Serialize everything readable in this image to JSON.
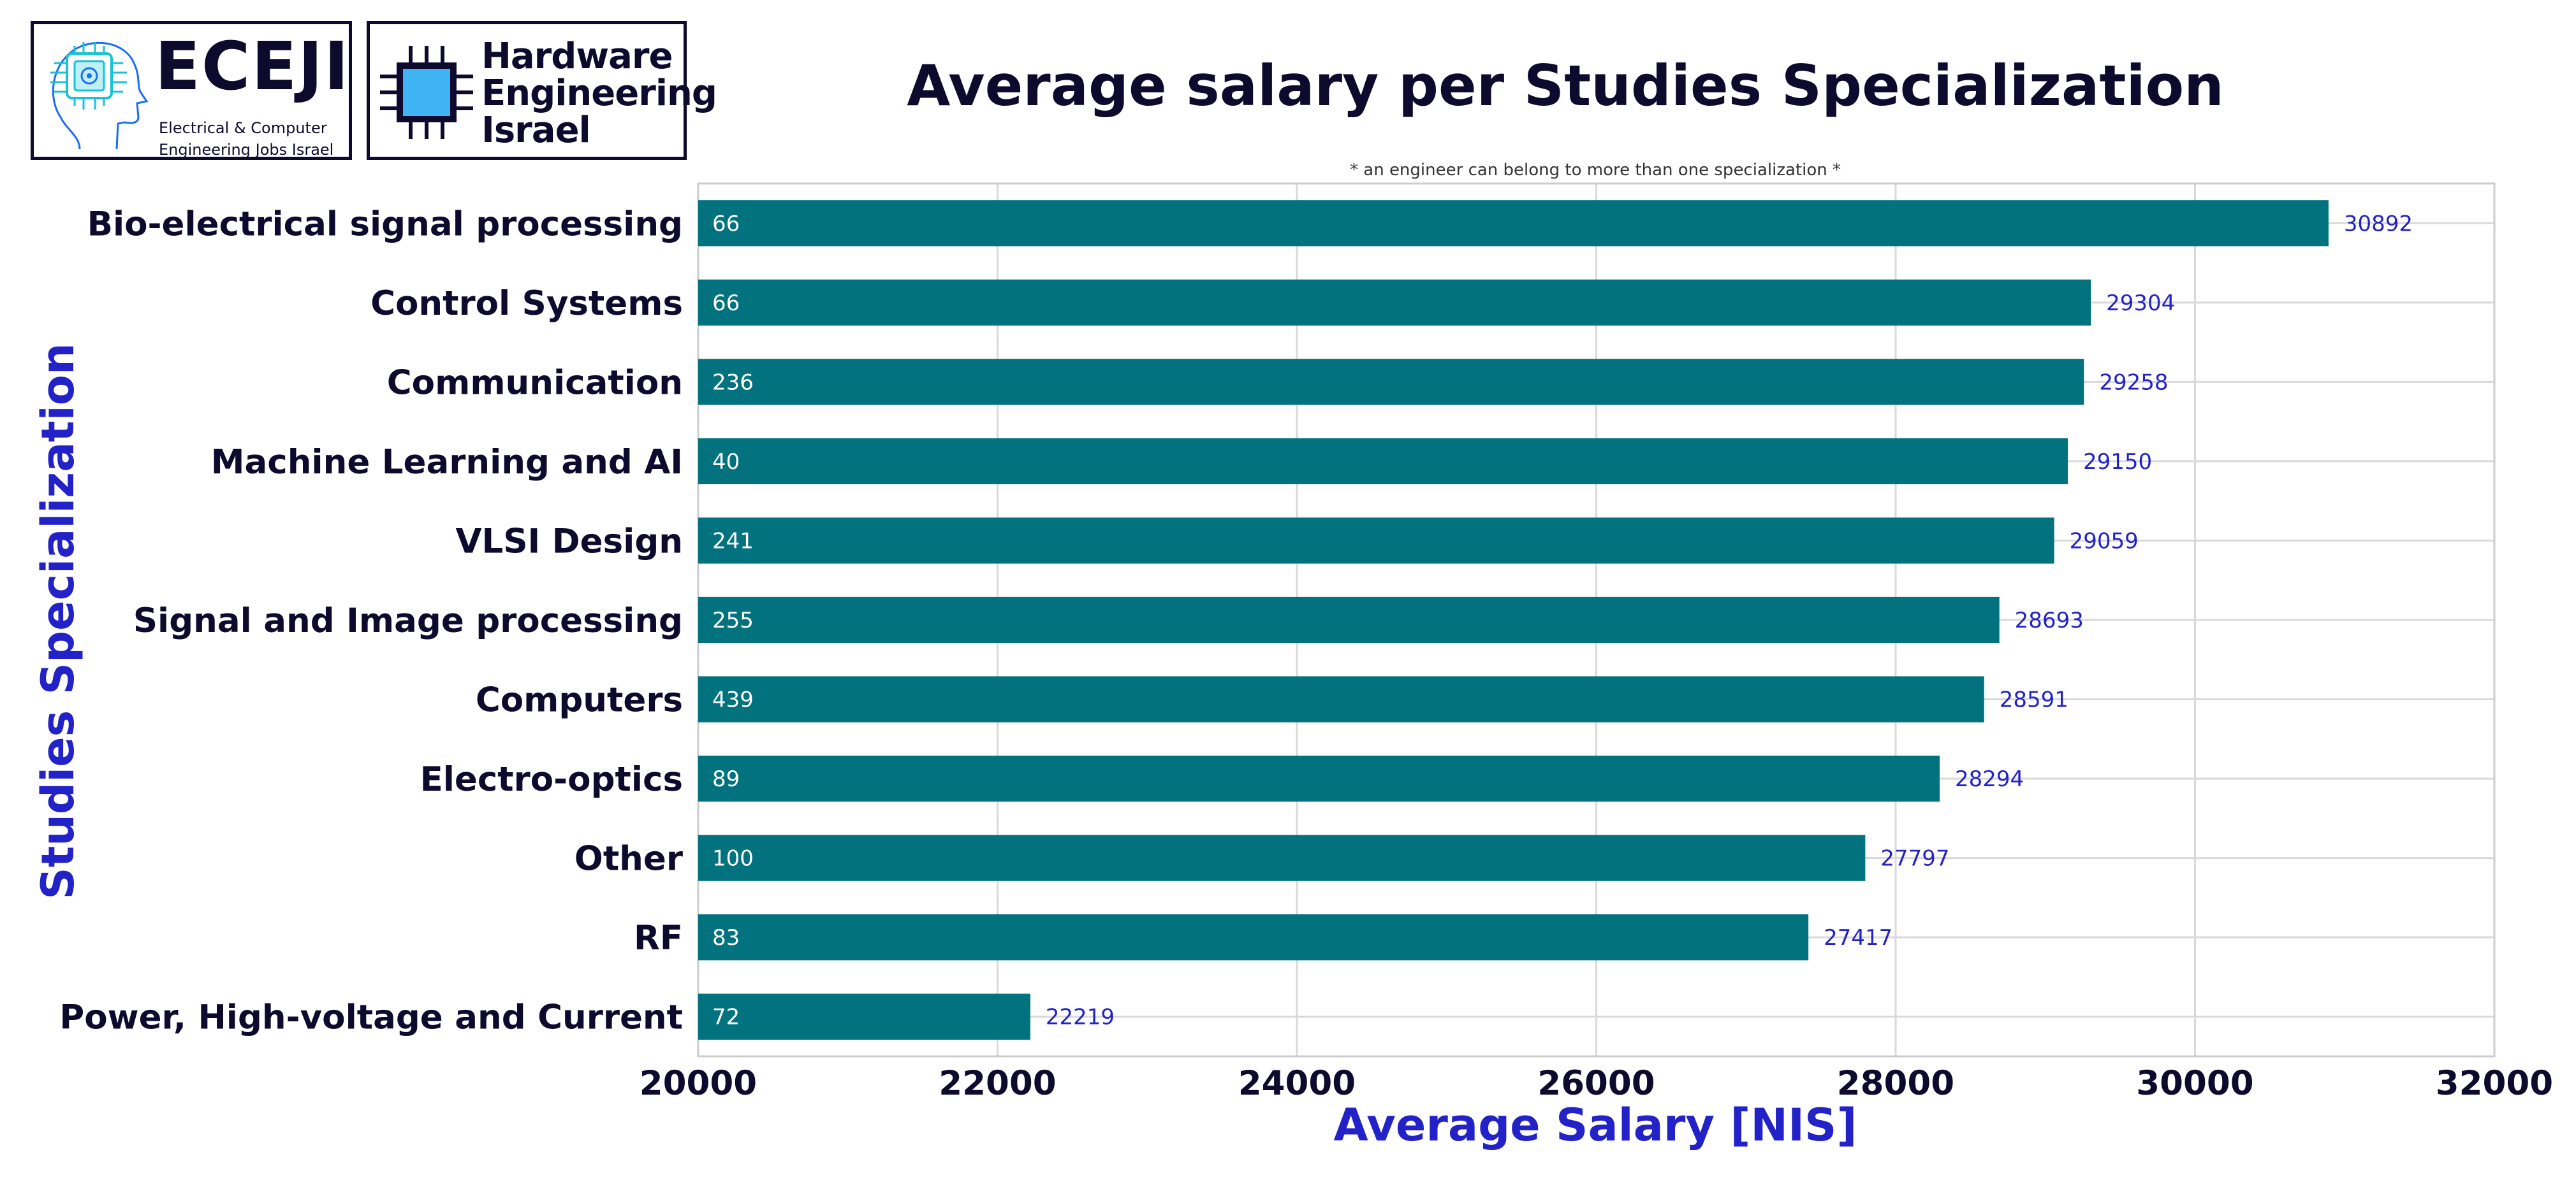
{
  "logos": {
    "eceji": {
      "name": "ECEJI",
      "subtitle_line1": "Electrical  &  Computer",
      "subtitle_line2": "Engineering Jobs Israel"
    },
    "hardware": {
      "line1": "Hardware",
      "line2": "Engineering",
      "line3": "Israel"
    }
  },
  "colors": {
    "bar": "#02727e",
    "title": "#0d0a2e",
    "axis_title": "#2222c8",
    "value_label": "#2222c8",
    "count_label": "#ffffff",
    "grid": "#d9d9d9",
    "chip_fill": "#3fb4f5"
  },
  "chart_data": {
    "type": "bar",
    "orientation": "horizontal",
    "title": "Average salary per Studies Specialization",
    "subtitle": "* an engineer can belong to more than one specialization *",
    "xlabel": "Average Salary [NIS]",
    "ylabel": "Studies Specialization",
    "xlim": [
      20000,
      32000
    ],
    "xticks": [
      20000,
      22000,
      24000,
      26000,
      28000,
      30000,
      32000
    ],
    "grid": true,
    "categories": [
      "Bio-electrical signal processing",
      "Control Systems",
      "Communication",
      "Machine Learning and AI",
      "VLSI Design",
      "Signal and Image processing",
      "Computers",
      "Electro-optics",
      "Other",
      "RF",
      "Power, High-voltage and Current"
    ],
    "values": [
      30892,
      29304,
      29258,
      29150,
      29059,
      28693,
      28591,
      28294,
      27797,
      27417,
      22219
    ],
    "counts": [
      66,
      66,
      236,
      40,
      241,
      255,
      439,
      89,
      100,
      83,
      72
    ]
  }
}
